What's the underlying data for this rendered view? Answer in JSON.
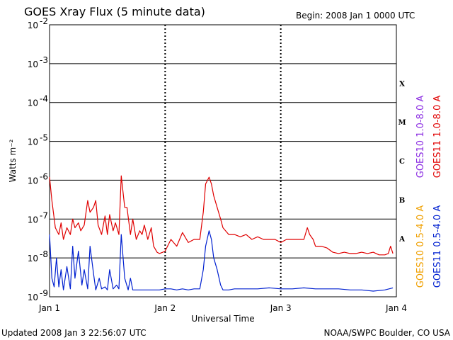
{
  "title": "GOES Xray Flux (5 minute data)",
  "begin_text": "Begin:  2008 Jan 1 0000 UTC",
  "updated_text": "Updated 2008 Jan  3 22:56:07 UTC",
  "credit_text": "NOAA/SWPC Boulder, CO USA",
  "chart_data": {
    "type": "line",
    "title": "GOES Xray Flux (5 minute data)",
    "xlabel": "Universal Time",
    "ylabel": "Watts m⁻²",
    "yscale": "log",
    "ylim": [
      1e-09,
      0.01
    ],
    "xlim_days": [
      0,
      3
    ],
    "x_tick_labels": [
      "Jan 1",
      "Jan 2",
      "Jan 3",
      "Jan 4"
    ],
    "y_tick_exponents": [
      -9,
      -8,
      -7,
      -6,
      -5,
      -4,
      -3,
      -2
    ],
    "flare_classes": [
      {
        "label": "A",
        "exponent": -8
      },
      {
        "label": "B",
        "exponent": -7
      },
      {
        "label": "C",
        "exponent": -6
      },
      {
        "label": "M",
        "exponent": -5
      },
      {
        "label": "X",
        "exponent": -4
      }
    ],
    "grid": "horizontal at each decade",
    "colors": {
      "goes11_long": "#e00000",
      "goes10_long": "#8a2be2",
      "goes10_short": "#f0a000",
      "goes11_short": "#0020d0"
    },
    "legend_right": [
      {
        "label": "GOES10 1.0-8.0 A",
        "color": "#8a2be2"
      },
      {
        "label": "GOES11 1.0-8.0 A",
        "color": "#e00000"
      },
      {
        "label": "GOES10 0.5-4.0 A",
        "color": "#f0a000"
      },
      {
        "label": "GOES11 0.5-4.0 A",
        "color": "#0020d0"
      }
    ],
    "series": [
      {
        "name": "GOES11 1.0-8.0 A",
        "color": "#e00000",
        "x_days": [
          0,
          0.02,
          0.05,
          0.08,
          0.1,
          0.12,
          0.15,
          0.18,
          0.2,
          0.22,
          0.25,
          0.27,
          0.3,
          0.33,
          0.35,
          0.38,
          0.4,
          0.42,
          0.45,
          0.48,
          0.5,
          0.52,
          0.55,
          0.57,
          0.6,
          0.62,
          0.65,
          0.67,
          0.7,
          0.72,
          0.75,
          0.78,
          0.8,
          0.82,
          0.85,
          0.88,
          0.9,
          0.93,
          0.95,
          0.98,
          1.0,
          1.05,
          1.1,
          1.15,
          1.2,
          1.25,
          1.3,
          1.33,
          1.35,
          1.38,
          1.4,
          1.42,
          1.45,
          1.48,
          1.5,
          1.55,
          1.6,
          1.65,
          1.7,
          1.75,
          1.8,
          1.85,
          1.9,
          1.95,
          2.0,
          2.05,
          2.1,
          2.15,
          2.2,
          2.23,
          2.25,
          2.28,
          2.3,
          2.35,
          2.4,
          2.45,
          2.5,
          2.55,
          2.6,
          2.65,
          2.7,
          2.75,
          2.8,
          2.85,
          2.9,
          2.93,
          2.95,
          2.97
        ],
        "y": [
          1.2e-06,
          3e-07,
          6e-08,
          4e-08,
          8e-08,
          3e-08,
          6e-08,
          4e-08,
          1e-07,
          6e-08,
          8e-08,
          5e-08,
          7e-08,
          3e-07,
          1.5e-07,
          2e-07,
          3e-07,
          7e-08,
          4e-08,
          1.2e-07,
          4e-08,
          1.3e-07,
          5e-08,
          8e-08,
          4e-08,
          1.3e-06,
          2e-07,
          2e-07,
          4e-08,
          1e-07,
          3e-08,
          5e-08,
          4e-08,
          7e-08,
          3e-08,
          6e-08,
          2e-08,
          1.4e-08,
          1.3e-08,
          1.4e-08,
          1.5e-08,
          3e-08,
          2e-08,
          4.5e-08,
          2.5e-08,
          3e-08,
          3e-08,
          1.5e-07,
          8e-07,
          1.2e-06,
          8e-07,
          4e-07,
          2e-07,
          1e-07,
          6e-08,
          4e-08,
          4e-08,
          3.5e-08,
          4e-08,
          3e-08,
          3.5e-08,
          3e-08,
          3e-08,
          3e-08,
          2.5e-08,
          3e-08,
          3e-08,
          3e-08,
          3e-08,
          6e-08,
          4e-08,
          3e-08,
          2e-08,
          2e-08,
          1.8e-08,
          1.4e-08,
          1.3e-08,
          1.4e-08,
          1.3e-08,
          1.3e-08,
          1.4e-08,
          1.3e-08,
          1.4e-08,
          1.2e-08,
          1.2e-08,
          1.3e-08,
          2e-08,
          1.3e-08
        ]
      },
      {
        "name": "GOES11 0.5-4.0 A",
        "color": "#0020d0",
        "x_days": [
          0,
          0.02,
          0.04,
          0.06,
          0.08,
          0.1,
          0.12,
          0.15,
          0.18,
          0.2,
          0.22,
          0.25,
          0.28,
          0.3,
          0.33,
          0.35,
          0.38,
          0.4,
          0.43,
          0.45,
          0.48,
          0.5,
          0.52,
          0.55,
          0.58,
          0.6,
          0.62,
          0.65,
          0.68,
          0.7,
          0.72,
          0.75,
          0.8,
          0.85,
          0.9,
          0.95,
          1.0,
          1.05,
          1.1,
          1.15,
          1.2,
          1.25,
          1.3,
          1.33,
          1.35,
          1.38,
          1.4,
          1.42,
          1.45,
          1.48,
          1.5,
          1.55,
          1.6,
          1.7,
          1.8,
          1.9,
          2.0,
          2.1,
          2.2,
          2.3,
          2.4,
          2.5,
          2.6,
          2.7,
          2.8,
          2.9,
          2.97
        ],
        "y": [
          4e-08,
          3e-09,
          1.8e-09,
          1e-08,
          1.8e-09,
          5e-09,
          1.5e-09,
          6e-09,
          1.6e-09,
          2e-08,
          3e-09,
          1.5e-08,
          2e-09,
          5e-09,
          1.6e-09,
          2e-08,
          4e-09,
          1.5e-09,
          3e-09,
          1.6e-09,
          1.8e-09,
          1.5e-09,
          5e-09,
          1.6e-09,
          2e-09,
          1.6e-09,
          4e-08,
          3e-09,
          1.5e-09,
          3e-09,
          1.5e-09,
          1.5e-09,
          1.5e-09,
          1.5e-09,
          1.5e-09,
          1.5e-09,
          1.6e-09,
          1.6e-09,
          1.5e-09,
          1.6e-09,
          1.5e-09,
          1.6e-09,
          1.6e-09,
          5e-09,
          2e-08,
          5e-08,
          3e-08,
          1e-08,
          5e-09,
          2e-09,
          1.5e-09,
          1.5e-09,
          1.6e-09,
          1.6e-09,
          1.6e-09,
          1.7e-09,
          1.6e-09,
          1.6e-09,
          1.7e-09,
          1.6e-09,
          1.6e-09,
          1.6e-09,
          1.5e-09,
          1.5e-09,
          1.4e-09,
          1.5e-09,
          1.7e-09
        ]
      }
    ]
  }
}
